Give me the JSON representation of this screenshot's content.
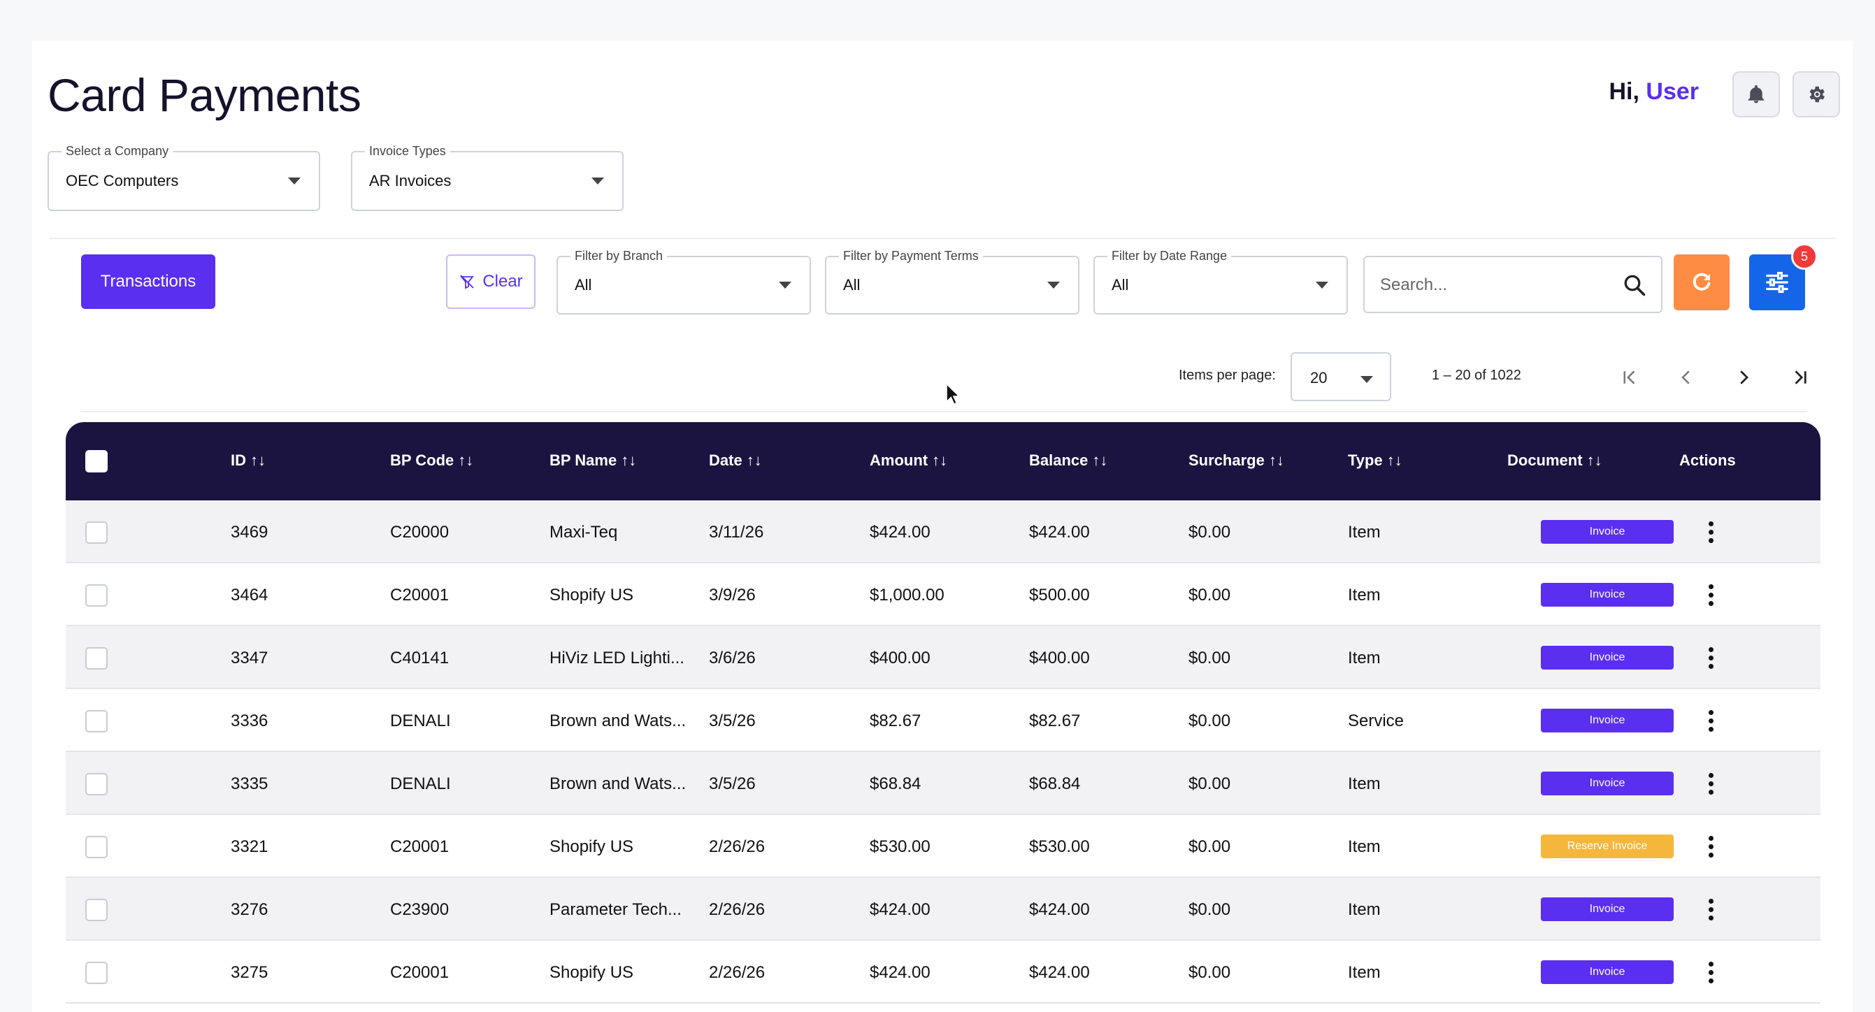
{
  "header": {
    "title": "Card Payments",
    "greeting_prefix": "Hi, ",
    "greeting_user": "User"
  },
  "selectors": {
    "company": {
      "label": "Select a Company",
      "value": "OEC Computers"
    },
    "invoice_types": {
      "label": "Invoice Types",
      "value": "AR Invoices"
    }
  },
  "toolbar": {
    "transactions_label": "Transactions",
    "clear_label": "Clear",
    "branch": {
      "label": "Filter by Branch",
      "value": "All"
    },
    "payment_terms": {
      "label": "Filter by Payment Terms",
      "value": "All"
    },
    "date_range": {
      "label": "Filter by Date Range",
      "value": "All"
    },
    "search_placeholder": "Search...",
    "filter_badge": "5"
  },
  "pager": {
    "items_per_page_label": "Items per page:",
    "items_per_page": "20",
    "range": "1 – 20 of 1022"
  },
  "table": {
    "columns": {
      "id": "ID",
      "bp_code": "BP Code",
      "bp_name": "BP Name",
      "date": "Date",
      "amount": "Amount",
      "balance": "Balance",
      "surcharge": "Surcharge",
      "type": "Type",
      "document": "Document",
      "actions": "Actions"
    },
    "sort_glyph": "↑↓",
    "rows": [
      {
        "id": "3469",
        "bp_code": "C20000",
        "bp_name": "Maxi-Teq",
        "date": "3/11/26",
        "amount": "$424.00",
        "balance": "$424.00",
        "surcharge": "$0.00",
        "type": "Item",
        "document": "Invoice"
      },
      {
        "id": "3464",
        "bp_code": "C20001",
        "bp_name": "Shopify US",
        "date": "3/9/26",
        "amount": "$1,000.00",
        "balance": "$500.00",
        "surcharge": "$0.00",
        "type": "Item",
        "document": "Invoice"
      },
      {
        "id": "3347",
        "bp_code": "C40141",
        "bp_name": "HiViz LED Lighti...",
        "date": "3/6/26",
        "amount": "$400.00",
        "balance": "$400.00",
        "surcharge": "$0.00",
        "type": "Item",
        "document": "Invoice"
      },
      {
        "id": "3336",
        "bp_code": "DENALI",
        "bp_name": "Brown and Wats...",
        "date": "3/5/26",
        "amount": "$82.67",
        "balance": "$82.67",
        "surcharge": "$0.00",
        "type": "Service",
        "document": "Invoice"
      },
      {
        "id": "3335",
        "bp_code": "DENALI",
        "bp_name": "Brown and Wats...",
        "date": "3/5/26",
        "amount": "$68.84",
        "balance": "$68.84",
        "surcharge": "$0.00",
        "type": "Item",
        "document": "Invoice"
      },
      {
        "id": "3321",
        "bp_code": "C20001",
        "bp_name": "Shopify US",
        "date": "2/26/26",
        "amount": "$530.00",
        "balance": "$530.00",
        "surcharge": "$0.00",
        "type": "Item",
        "document": "Reserve Invoice"
      },
      {
        "id": "3276",
        "bp_code": "C23900",
        "bp_name": "Parameter Tech...",
        "date": "2/26/26",
        "amount": "$424.00",
        "balance": "$424.00",
        "surcharge": "$0.00",
        "type": "Item",
        "document": "Invoice"
      },
      {
        "id": "3275",
        "bp_code": "C20001",
        "bp_name": "Shopify US",
        "date": "2/26/26",
        "amount": "$424.00",
        "balance": "$424.00",
        "surcharge": "$0.00",
        "type": "Item",
        "document": "Invoice"
      }
    ]
  },
  "colors": {
    "accent": "#5a2ff0",
    "header_bg": "#1b1440",
    "invoice_badge": "#5a2ff0",
    "reserve_badge": "#f5b73b",
    "refresh": "#ff8c42",
    "filter": "#1565e8"
  },
  "icons": {
    "notifications": "bell-icon",
    "settings": "gear-icon",
    "clear": "filter-off-icon",
    "search": "search-icon",
    "refresh": "refresh-icon",
    "filter": "sliders-icon"
  }
}
